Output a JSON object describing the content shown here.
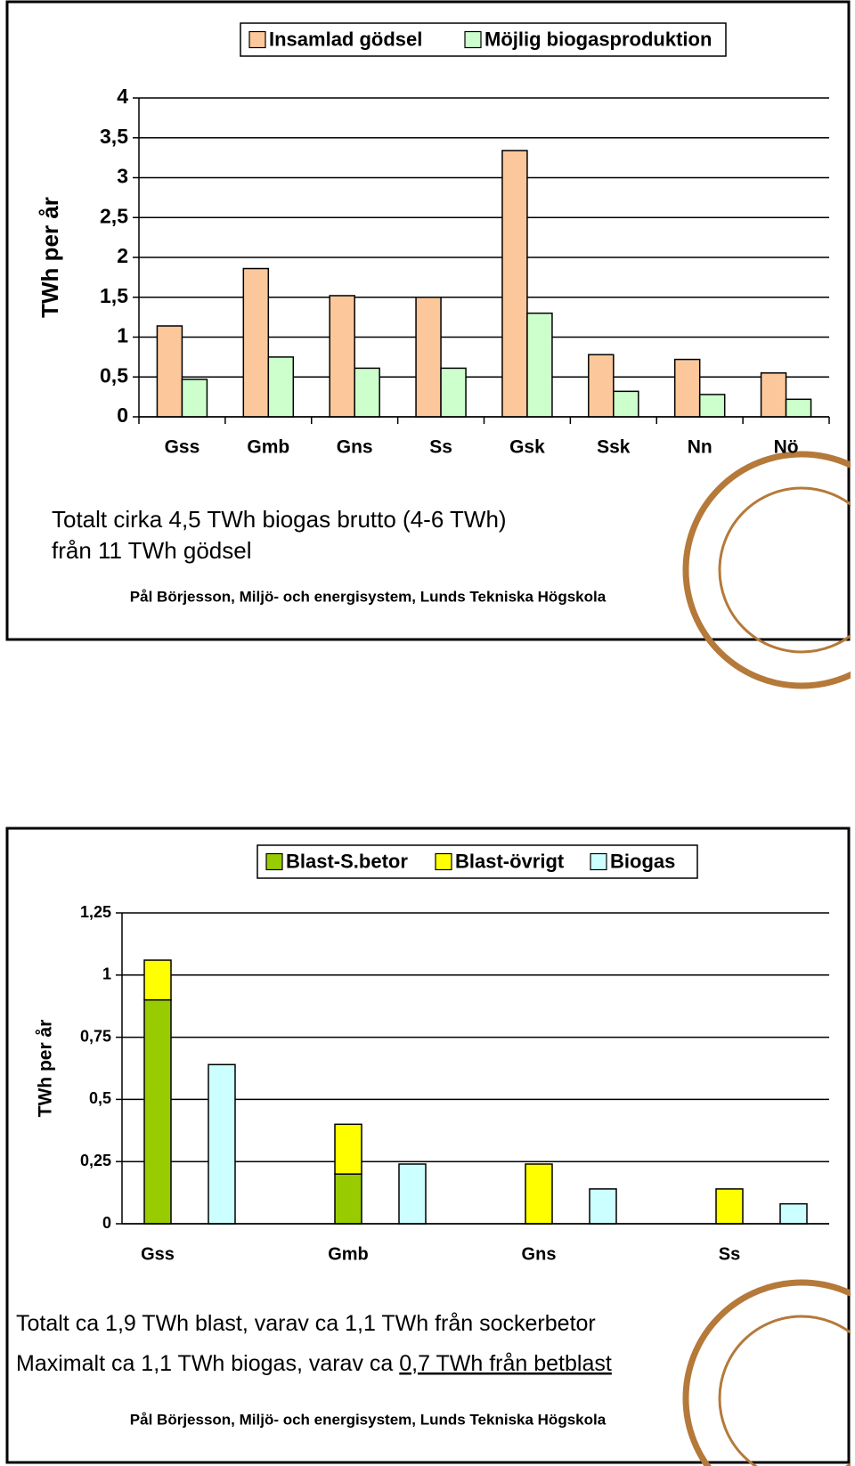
{
  "chart_data": [
    {
      "type": "bar",
      "ylabel": "TWh per år",
      "categories": [
        "Gss",
        "Gmb",
        "Gns",
        "Ss",
        "Gsk",
        "Ssk",
        "Nn",
        "Nö"
      ],
      "series": [
        {
          "name": "Insamlad gödsel",
          "color": "#fcc89b",
          "values": [
            1.14,
            1.86,
            1.52,
            1.5,
            3.34,
            0.78,
            0.72,
            0.55
          ]
        },
        {
          "name": "Möjlig biogasproduktion",
          "color": "#ccffcc",
          "values": [
            0.47,
            0.75,
            0.61,
            0.61,
            1.3,
            0.32,
            0.28,
            0.22
          ]
        }
      ],
      "ylim": [
        0,
        4
      ],
      "yticks": [
        0,
        {
          "value": 0.5,
          "label": "0,5"
        },
        1,
        {
          "value": 1.5,
          "label": "1,5"
        },
        2,
        {
          "value": 2.5,
          "label": "2,5"
        },
        3,
        {
          "value": 3.5,
          "label": "3,5"
        },
        4
      ],
      "grid": true,
      "legend": "top",
      "notes": [
        [
          "Totalt cirka 4,5 TWh biogas brutto (4-6 TWh)"
        ],
        [
          "från 11 TWh gödsel"
        ]
      ],
      "credit": "Pål Börjesson, Miljö- och energisystem, Lunds Tekniska Högskola"
    },
    {
      "type": "stacked-bar",
      "ylabel": "TWh per år",
      "categories": [
        "Gss",
        "Gmb",
        "Gns",
        "Ss"
      ],
      "series": [
        {
          "name": "Blast-S.betor",
          "color": "#99cc00",
          "stack": 0,
          "values": [
            0.9,
            0.2,
            0,
            0
          ]
        },
        {
          "name": "Blast-övrigt",
          "color": "#ffff00",
          "stack": 0,
          "values": [
            0.16,
            0.2,
            0.24,
            0.14
          ]
        },
        {
          "name": "Biogas",
          "color": "#ccffff",
          "stack": 1,
          "values": [
            0.64,
            0.24,
            0.14,
            0.08
          ]
        }
      ],
      "ylim": [
        0,
        1.25
      ],
      "yticks": [
        0,
        {
          "value": 0.25,
          "label": "0,25"
        },
        {
          "value": 0.5,
          "label": "0,5"
        },
        {
          "value": 0.75,
          "label": "0,75"
        },
        1,
        {
          "value": 1.25,
          "label": "1,25"
        }
      ],
      "grid": true,
      "legend": "top",
      "notes": [
        [
          "Totalt ca 1,9 TWh blast, varav ca 1,1 TWh från sockerbetor"
        ],
        [
          "Maximalt ca 1,1 TWh biogas, varav ca ",
          "0,7 TWh från betblast"
        ]
      ],
      "credit": "Pål Börjesson, Miljö- och energisystem, Lunds Tekniska Högskola"
    }
  ]
}
